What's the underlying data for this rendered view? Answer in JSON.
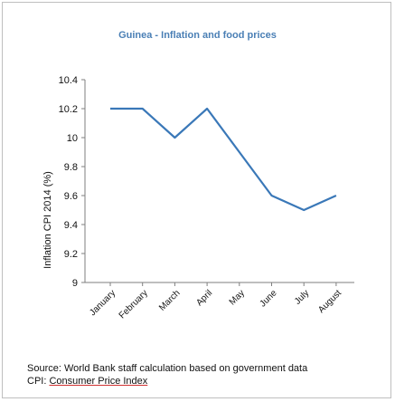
{
  "chart_data": {
    "type": "line",
    "title": "Guinea - Inflation and food prices",
    "ylabel": "Inflation CPI 2014 (%)",
    "xlabel": "",
    "categories": [
      "January",
      "February",
      "March",
      "April",
      "May",
      "June",
      "July",
      "August"
    ],
    "series": [
      {
        "values": [
          10.2,
          10.2,
          10.0,
          10.2,
          9.9,
          9.6,
          9.5,
          9.6
        ]
      }
    ],
    "ylim": [
      9,
      10.4
    ],
    "yticks": [
      "9",
      "9.2",
      "9.4",
      "9.6",
      "9.8",
      "10",
      "10.2",
      "10.4"
    ],
    "line_color": "#3a78b8",
    "grid": false,
    "legend": "none"
  },
  "footnote": {
    "source": "Source: World Bank staff calculation based on government data",
    "cpi_prefix": "CPI: ",
    "cpi_text": "Consumer Price Index"
  }
}
